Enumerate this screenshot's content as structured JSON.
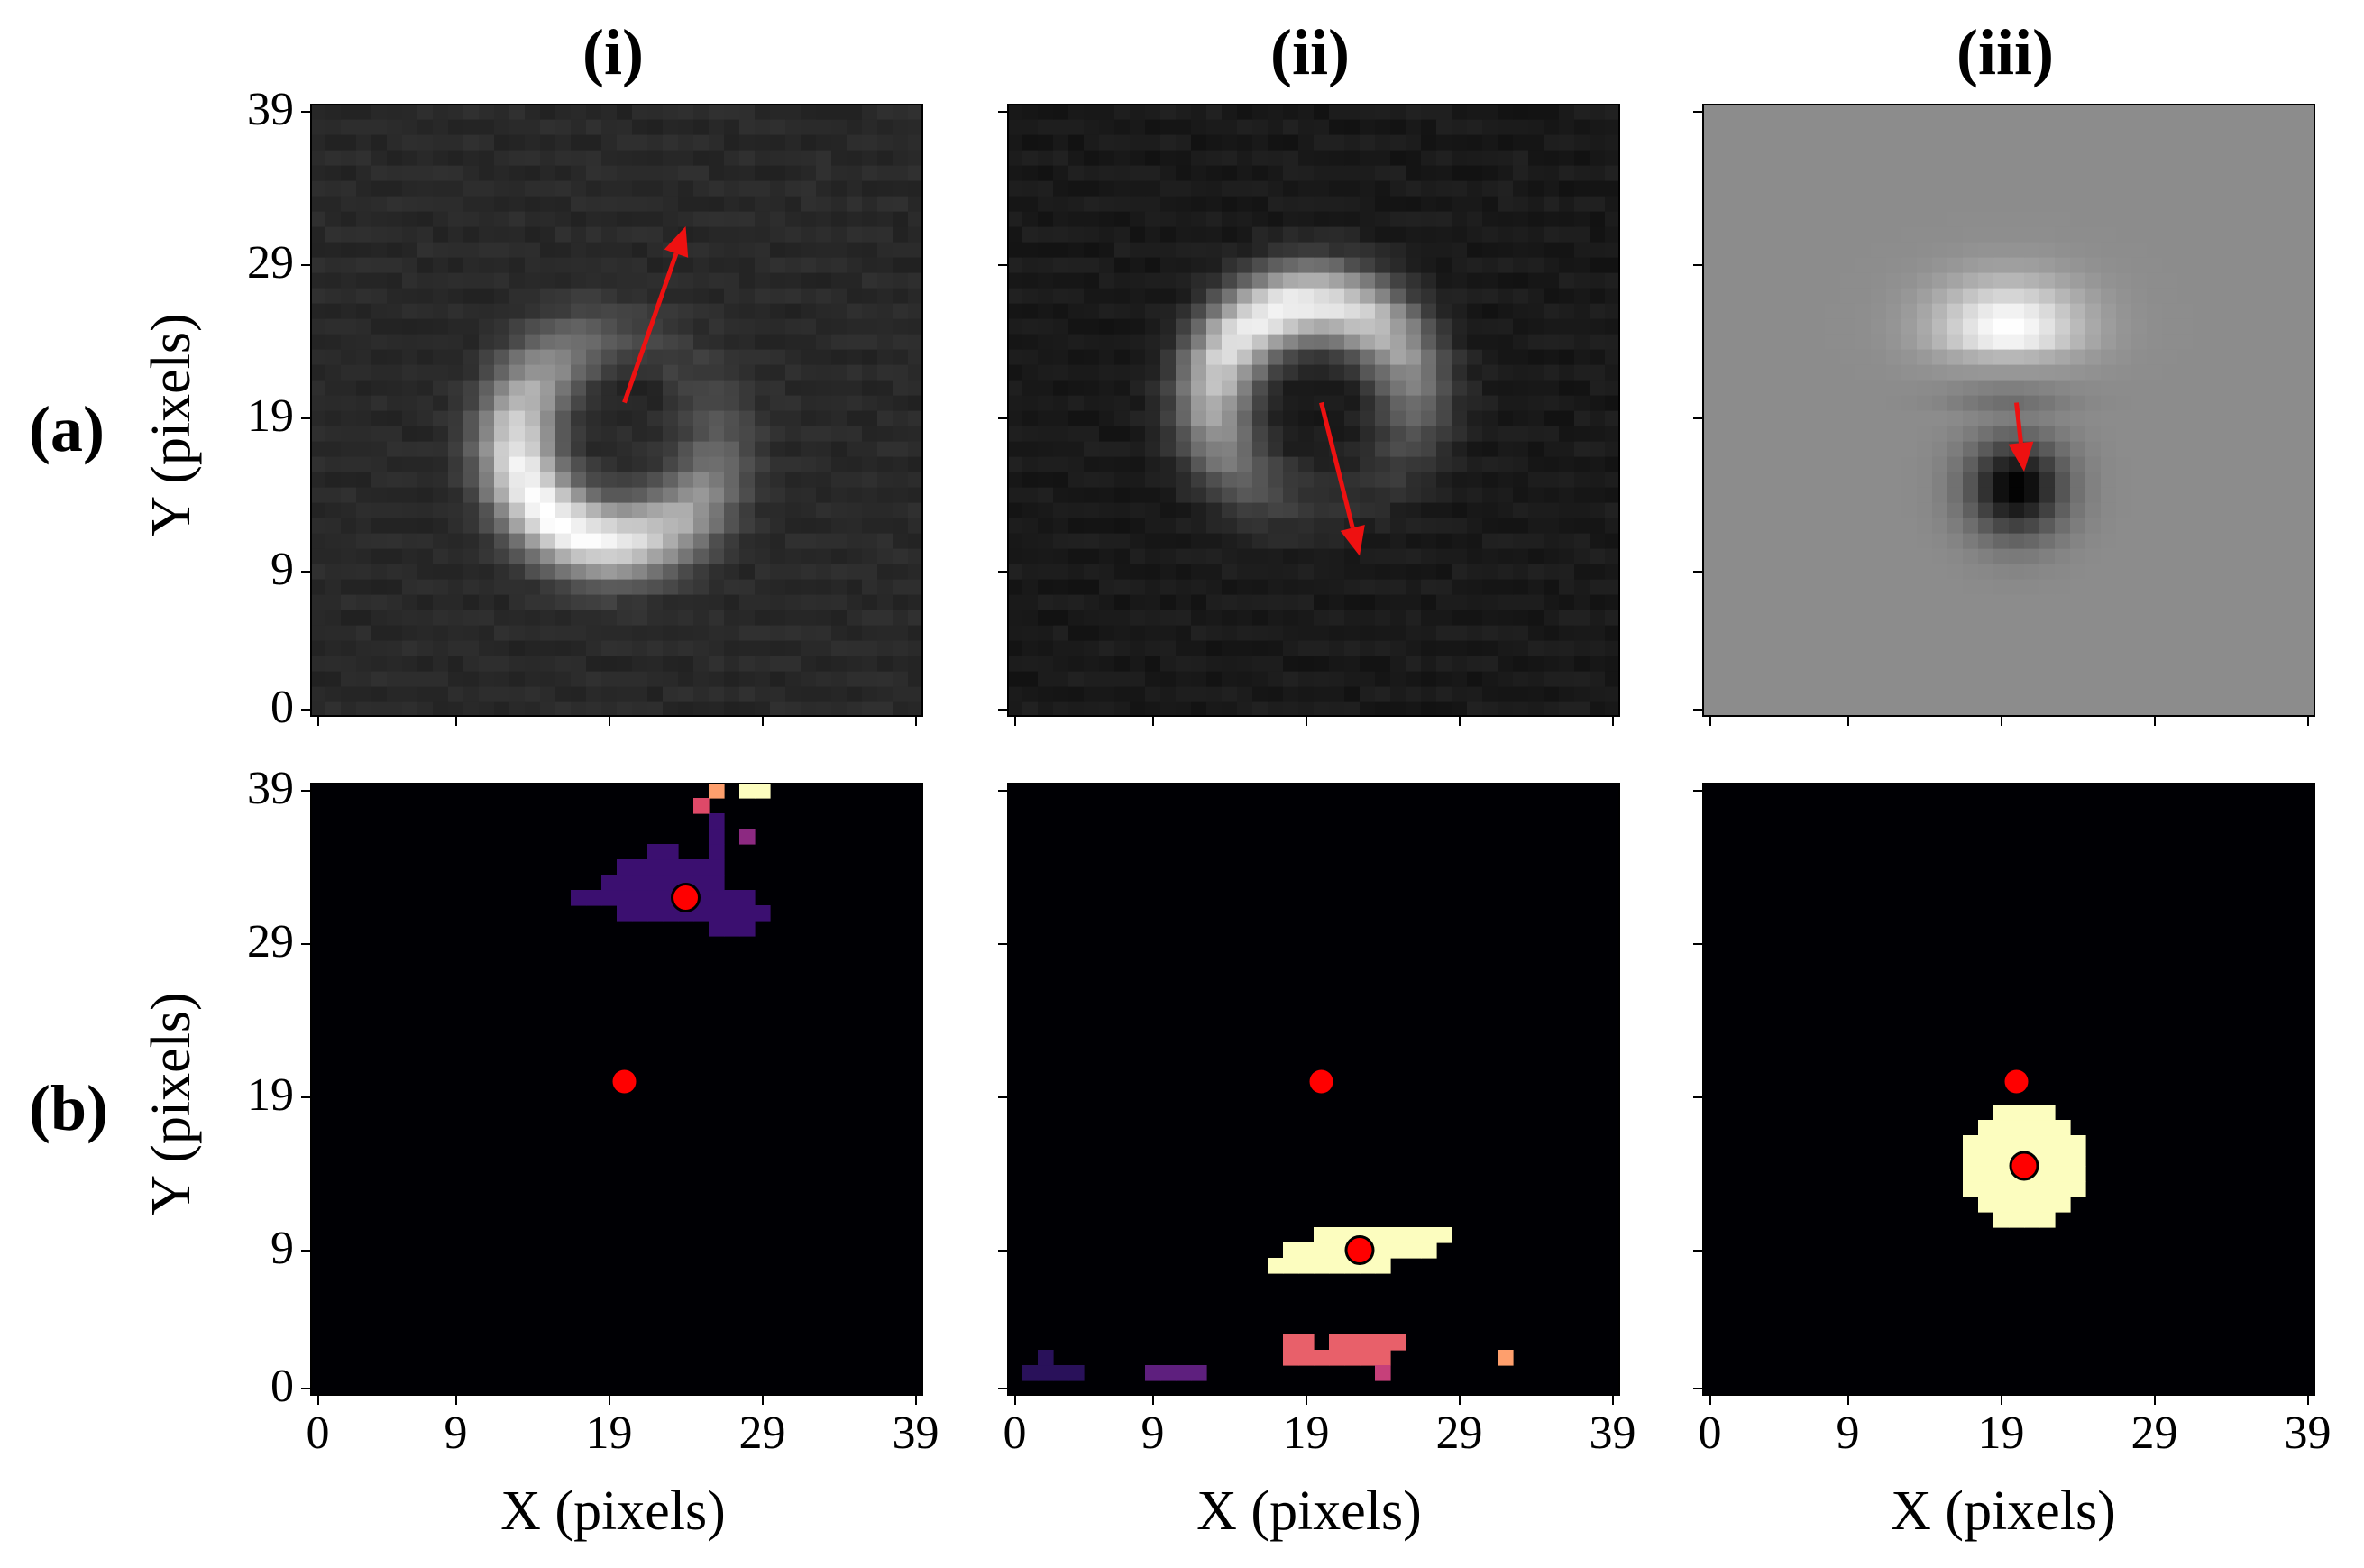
{
  "chart_data": {
    "type": "heatmap",
    "grid_size": 40,
    "x_ticks": [
      0,
      9,
      19,
      29,
      39
    ],
    "y_ticks": [
      0,
      9,
      19,
      29,
      39
    ],
    "xlabel": "X (pixels)",
    "ylabel": "Y (pixels)",
    "columns": [
      "(i)",
      "(ii)",
      "(iii)"
    ],
    "rows": [
      "(a)",
      "(b)"
    ],
    "panels_a": [
      {
        "id": "a-i",
        "image": "grayscale vortex ring",
        "ring": {
          "cx": 19.5,
          "cy": 17.5,
          "r": 6.5,
          "dark_center": [
            20,
            20
          ],
          "bright_sector_deg": 230,
          "background": 0.16
        },
        "arrow": {
          "from": [
            20,
            20
          ],
          "to": [
            24,
            31.5
          ],
          "color": "#ee1111"
        }
      },
      {
        "id": "a-ii",
        "image": "grayscale vortex ring",
        "ring": {
          "cx": 19.5,
          "cy": 20,
          "r": 6.5,
          "dark_center": [
            20,
            20
          ],
          "bright_sector_deg": 110,
          "background": 0.1
        },
        "arrow": {
          "from": [
            20,
            20
          ],
          "to": [
            22.5,
            10
          ],
          "color": "#ee1111"
        }
      },
      {
        "id": "a-iii",
        "image": "grayscale dipole",
        "dipole": {
          "bright": [
            19.5,
            25
          ],
          "dark": [
            20,
            14.5
          ],
          "background": 0.55
        },
        "arrow": {
          "from": [
            20,
            20
          ],
          "to": [
            20.5,
            15.5
          ],
          "color": "#ee1111"
        }
      }
    ],
    "panels_b": [
      {
        "id": "b-i",
        "center_dot": [
          20,
          20
        ],
        "detected_dot": [
          24,
          32
        ],
        "clusters": [
          {
            "color": "#3b0f70",
            "cells": [
              [
                17,
                32
              ],
              [
                18,
                32
              ],
              [
                19,
                32
              ],
              [
                20,
                32
              ],
              [
                21,
                32
              ],
              [
                22,
                32
              ],
              [
                23,
                32
              ],
              [
                24,
                32
              ],
              [
                25,
                32
              ],
              [
                26,
                32
              ],
              [
                27,
                32
              ],
              [
                28,
                32
              ],
              [
                20,
                31
              ],
              [
                21,
                31
              ],
              [
                22,
                31
              ],
              [
                23,
                31
              ],
              [
                24,
                31
              ],
              [
                25,
                31
              ],
              [
                26,
                31
              ],
              [
                27,
                31
              ],
              [
                28,
                31
              ],
              [
                29,
                31
              ],
              [
                26,
                30
              ],
              [
                27,
                30
              ],
              [
                28,
                30
              ],
              [
                19,
                33
              ],
              [
                20,
                33
              ],
              [
                21,
                33
              ],
              [
                22,
                33
              ],
              [
                23,
                33
              ],
              [
                24,
                33
              ],
              [
                25,
                33
              ],
              [
                26,
                33
              ],
              [
                20,
                34
              ],
              [
                21,
                34
              ],
              [
                22,
                34
              ],
              [
                23,
                34
              ],
              [
                24,
                34
              ],
              [
                25,
                34
              ],
              [
                26,
                34
              ],
              [
                22,
                35
              ],
              [
                23,
                35
              ],
              [
                26,
                35
              ],
              [
                26,
                36
              ],
              [
                26,
                37
              ]
            ]
          },
          {
            "color": "#8c2981",
            "cells": [
              [
                28,
                36
              ]
            ]
          },
          {
            "color": "#de4968",
            "cells": [
              [
                25,
                38
              ]
            ]
          },
          {
            "color": "#fe9f6d",
            "cells": [
              [
                26,
                39
              ]
            ]
          },
          {
            "color": "#fcfdbf",
            "cells": [
              [
                28,
                39
              ],
              [
                29,
                39
              ]
            ]
          }
        ]
      },
      {
        "id": "b-ii",
        "center_dot": [
          20,
          20
        ],
        "detected_dot": [
          22.5,
          9
        ],
        "clusters": [
          {
            "color": "#fcfdbf",
            "cells": [
              [
                17,
                8
              ],
              [
                18,
                8
              ],
              [
                19,
                8
              ],
              [
                20,
                8
              ],
              [
                21,
                8
              ],
              [
                22,
                8
              ],
              [
                23,
                8
              ],
              [
                24,
                8
              ],
              [
                18,
                9
              ],
              [
                19,
                9
              ],
              [
                20,
                9
              ],
              [
                21,
                9
              ],
              [
                22,
                9
              ],
              [
                23,
                9
              ],
              [
                24,
                9
              ],
              [
                25,
                9
              ],
              [
                26,
                9
              ],
              [
                27,
                9
              ],
              [
                20,
                10
              ],
              [
                21,
                10
              ],
              [
                22,
                10
              ],
              [
                23,
                10
              ],
              [
                24,
                10
              ],
              [
                25,
                10
              ],
              [
                26,
                10
              ],
              [
                27,
                10
              ],
              [
                28,
                10
              ]
            ]
          },
          {
            "color": "#e8606a",
            "cells": [
              [
                18,
                3
              ],
              [
                19,
                3
              ],
              [
                21,
                3
              ],
              [
                22,
                3
              ],
              [
                23,
                3
              ],
              [
                24,
                3
              ],
              [
                25,
                3
              ],
              [
                18,
                2
              ],
              [
                19,
                2
              ],
              [
                20,
                2
              ],
              [
                21,
                2
              ],
              [
                22,
                2
              ],
              [
                23,
                2
              ],
              [
                24,
                2
              ]
            ]
          },
          {
            "color": "#c6407a",
            "cells": [
              [
                24,
                1
              ]
            ]
          },
          {
            "color": "#fe9f6d",
            "cells": [
              [
                32,
                2
              ]
            ]
          },
          {
            "color": "#29115a",
            "cells": [
              [
                1,
                1
              ],
              [
                2,
                1
              ],
              [
                3,
                1
              ],
              [
                4,
                1
              ],
              [
                2,
                2
              ]
            ]
          },
          {
            "color": "#5e1f7e",
            "cells": [
              [
                9,
                1
              ],
              [
                10,
                1
              ],
              [
                11,
                1
              ],
              [
                12,
                1
              ]
            ]
          }
        ]
      },
      {
        "id": "b-iii",
        "center_dot": [
          20,
          20
        ],
        "detected_dot": [
          20.5,
          14.5
        ],
        "clusters": [
          {
            "color": "#fcfdbf",
            "shape": "disc",
            "center": [
              20.5,
              14.5
            ],
            "radius": 4.2
          }
        ]
      }
    ]
  }
}
